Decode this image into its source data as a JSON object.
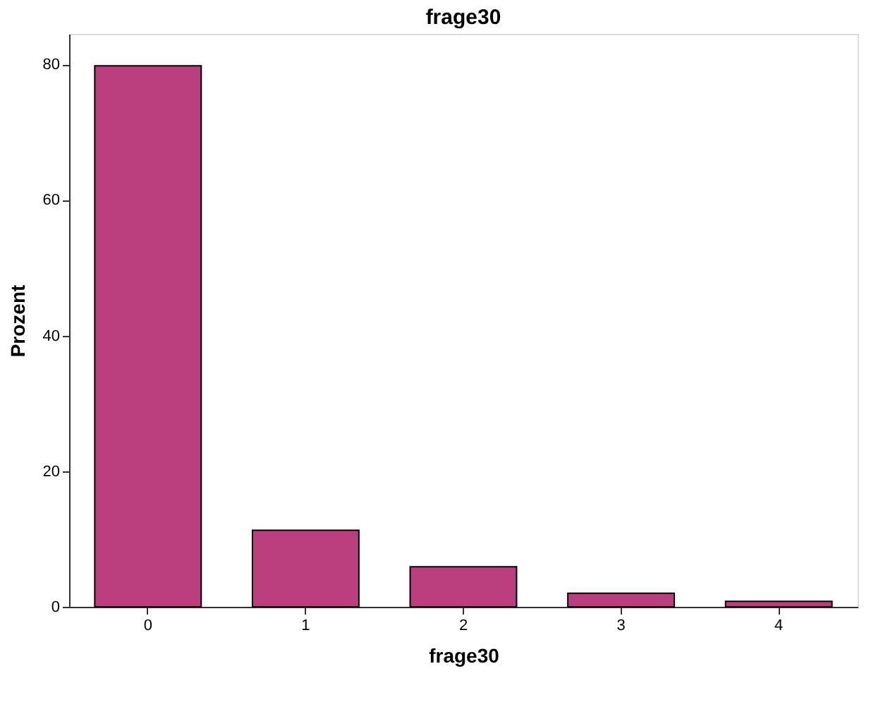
{
  "chart_data": {
    "type": "bar",
    "title": "frage30",
    "xlabel": "frage30",
    "ylabel": "Prozent",
    "categories": [
      "0",
      "1",
      "2",
      "3",
      "4"
    ],
    "values": [
      79.8,
      11.3,
      5.9,
      2.0,
      0.8
    ],
    "color": "#bb3f7e",
    "ylim": [
      0,
      84.5
    ],
    "yticks": [
      0,
      20,
      40,
      60,
      80
    ],
    "grid": false
  }
}
